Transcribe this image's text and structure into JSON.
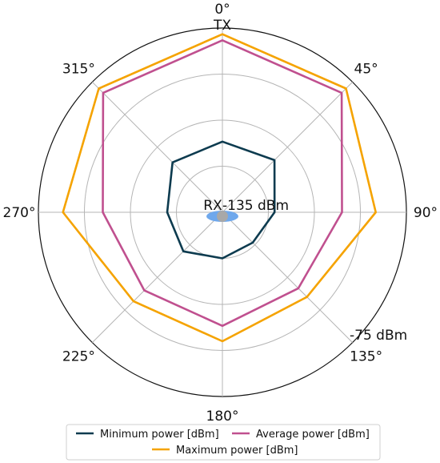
{
  "chart_data": {
    "type": "polar-line",
    "radial_range": [
      -135,
      -75
    ],
    "radial_range_unit": "dBm",
    "radial_ticks": [
      -120,
      -105,
      -90,
      -75
    ],
    "radial_labels": {
      "inner": "-135 dBm",
      "outer": "-75 dBm"
    },
    "angular_ticks": [
      {
        "deg": 0,
        "label": "0°"
      },
      {
        "deg": 45,
        "label": "45°"
      },
      {
        "deg": 90,
        "label": "90°"
      },
      {
        "deg": 135,
        "label": "135°"
      },
      {
        "deg": 180,
        "label": "180°"
      },
      {
        "deg": 225,
        "label": "225°"
      },
      {
        "deg": 270,
        "label": "270°"
      },
      {
        "deg": 315,
        "label": "315°"
      }
    ],
    "angles": [
      0,
      45,
      90,
      135,
      180,
      225,
      270,
      315
    ],
    "annotations": {
      "tx": "TX",
      "rx": "RX"
    },
    "series": [
      {
        "name": "Minimum power [dBm]",
        "color": "#0d3b4f",
        "values": [
          -112,
          -111,
          -118,
          -121,
          -120,
          -117,
          -117,
          -112
        ]
      },
      {
        "name": "Average power [dBm]",
        "color": "#c0508f",
        "values": [
          -79,
          -80,
          -96,
          -100,
          -98,
          -99,
          -96,
          -80
        ]
      },
      {
        "name": "Maximum power [dBm]",
        "color": "#f5a300",
        "values": [
          -77,
          -78,
          -85,
          -96,
          -93,
          -94,
          -83,
          -78
        ]
      }
    ],
    "grid": true,
    "legend_position": "bottom"
  }
}
